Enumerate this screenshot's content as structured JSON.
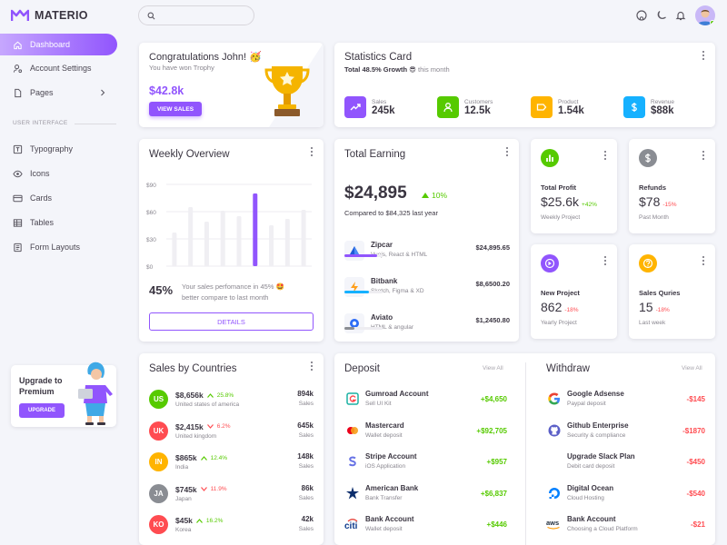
{
  "brand": {
    "name": "MATERIO"
  },
  "search": {
    "placeholder": ""
  },
  "nav": {
    "items": [
      {
        "label": "Dashboard"
      },
      {
        "label": "Account Settings"
      },
      {
        "label": "Pages"
      }
    ],
    "section": "USER INTERFACE",
    "ui_items": [
      {
        "label": "Typography"
      },
      {
        "label": "Icons"
      },
      {
        "label": "Cards"
      },
      {
        "label": "Tables"
      },
      {
        "label": "Form Layouts"
      }
    ]
  },
  "upgrade": {
    "title_line1": "Upgrade to",
    "title_line2": "Premium",
    "button": "UPGRADE"
  },
  "congrats": {
    "title": "Congratulations John! 🥳",
    "subtitle": "You have won Trophy",
    "amount": "$42.8k",
    "button": "VIEW SALES"
  },
  "statistics": {
    "title": "Statistics Card",
    "subtitle_bold": "Total 48.5% Growth 😎",
    "subtitle_rest": " this month",
    "items": [
      {
        "label": "Sales",
        "value": "245k",
        "color": "#9155fd",
        "icon": "trending-up-icon"
      },
      {
        "label": "Customers",
        "value": "12.5k",
        "color": "#56ca00",
        "icon": "user-icon"
      },
      {
        "label": "Product",
        "value": "1.54k",
        "color": "#ffb400",
        "icon": "tag-icon"
      },
      {
        "label": "Revenue",
        "value": "$88k",
        "color": "#16b1ff",
        "icon": "dollar-icon"
      }
    ]
  },
  "weekly": {
    "title": "Weekly Overview",
    "percent": "45%",
    "text_line1": "Your sales perfomance in 45% 🤩",
    "text_line2": "better compare to last month",
    "button": "DETAILS",
    "chart_data": {
      "type": "bar",
      "yticks": [
        "$90",
        "$60",
        "$30",
        "$0"
      ],
      "ylim": [
        0,
        90
      ],
      "values": [
        37,
        65,
        49,
        61,
        55,
        80,
        45,
        52,
        62
      ],
      "highlight_index": 5
    }
  },
  "earning": {
    "title": "Total Earning",
    "amount": "$24,895",
    "change": "10%",
    "compare": "Compared to $84,325 last year",
    "items": [
      {
        "name": "Zipcar",
        "sub": "Vuejs, React & HTML",
        "amount": "$24,895.65",
        "progress": 0.85,
        "color": "#9155fd",
        "icon": "zipcar-logo-icon"
      },
      {
        "name": "Bitbank",
        "sub": "Sketch, Figma & XD",
        "amount": "$8,6500.20",
        "progress": 0.65,
        "color": "#16b1ff",
        "icon": "bitbank-logo-icon"
      },
      {
        "name": "Aviato",
        "sub": "HTML & angular",
        "amount": "$1,2450.80",
        "progress": 0.25,
        "color": "#8a8d93",
        "icon": "aviato-logo-icon"
      }
    ]
  },
  "mini": [
    {
      "label": "Total Profit",
      "value": "$25.6k",
      "change": "+42%",
      "positive": true,
      "sub": "Weekly Project",
      "color": "#56ca00",
      "icon": "chart-icon"
    },
    {
      "label": "Refunds",
      "value": "$78",
      "change": "-15%",
      "positive": false,
      "sub": "Past Month",
      "color": "#8a8d93",
      "icon": "dollar-icon"
    },
    {
      "label": "New Project",
      "value": "862",
      "change": "-18%",
      "positive": false,
      "sub": "Yearly Project",
      "color": "#9155fd",
      "icon": "briefcase-icon"
    },
    {
      "label": "Sales Quries",
      "value": "15",
      "change": "-18%",
      "positive": false,
      "sub": "Last week",
      "color": "#ffb400",
      "icon": "help-icon"
    }
  ],
  "countries": {
    "title": "Sales by Countries",
    "items": [
      {
        "code": "US",
        "amount": "$8,656k",
        "change": "25.8%",
        "up": true,
        "name": "United states of america",
        "sales": "894k",
        "sales_label": "Sales",
        "color": "#56ca00"
      },
      {
        "code": "UK",
        "amount": "$2,415k",
        "change": "6.2%",
        "up": false,
        "name": "United kingdom",
        "sales": "645k",
        "sales_label": "Sales",
        "color": "#ff4c51"
      },
      {
        "code": "IN",
        "amount": "$865k",
        "change": "12.4%",
        "up": true,
        "name": "India",
        "sales": "148k",
        "sales_label": "Sales",
        "color": "#ffb400"
      },
      {
        "code": "JA",
        "amount": "$745k",
        "change": "11.9%",
        "up": false,
        "name": "Japan",
        "sales": "86k",
        "sales_label": "Sales",
        "color": "#8a8d93"
      },
      {
        "code": "KO",
        "amount": "$45k",
        "change": "16.2%",
        "up": true,
        "name": "Korea",
        "sales": "42k",
        "sales_label": "Sales",
        "color": "#ff4c51"
      }
    ]
  },
  "deposit": {
    "title": "Deposit",
    "view_all": "View All",
    "items": [
      {
        "name": "Gumroad Account",
        "sub": "Sell UI Kit",
        "amount": "+$4,650",
        "icon": "gumroad-logo-icon"
      },
      {
        "name": "Mastercard",
        "sub": "Wallet deposit",
        "amount": "+$92,705",
        "icon": "mastercard-logo-icon"
      },
      {
        "name": "Stripe Account",
        "sub": "iOS Application",
        "amount": "+$957",
        "icon": "stripe-logo-icon"
      },
      {
        "name": "American Bank",
        "sub": "Bank Transfer",
        "amount": "+$6,837",
        "icon": "american-bank-logo-icon"
      },
      {
        "name": "Bank Account",
        "sub": "Wallet deposit",
        "amount": "+$446",
        "icon": "citi-logo-icon"
      }
    ]
  },
  "withdraw": {
    "title": "Withdraw",
    "view_all": "View All",
    "items": [
      {
        "name": "Google Adsense",
        "sub": "Paypal deposit",
        "amount": "-$145",
        "icon": "google-logo-icon"
      },
      {
        "name": "Github Enterprise",
        "sub": "Security & compliance",
        "amount": "-$1870",
        "icon": "github-logo-icon"
      },
      {
        "name": "Upgrade Slack Plan",
        "sub": "Debit card deposit",
        "amount": "-$450",
        "icon": "slack-logo-icon"
      },
      {
        "name": "Digital Ocean",
        "sub": "Cloud Hosting",
        "amount": "-$540",
        "icon": "digital-ocean-logo-icon"
      },
      {
        "name": "Bank Account",
        "sub": "Choosing a Cloud Platform",
        "amount": "-$21",
        "icon": "aws-logo-icon"
      }
    ]
  }
}
